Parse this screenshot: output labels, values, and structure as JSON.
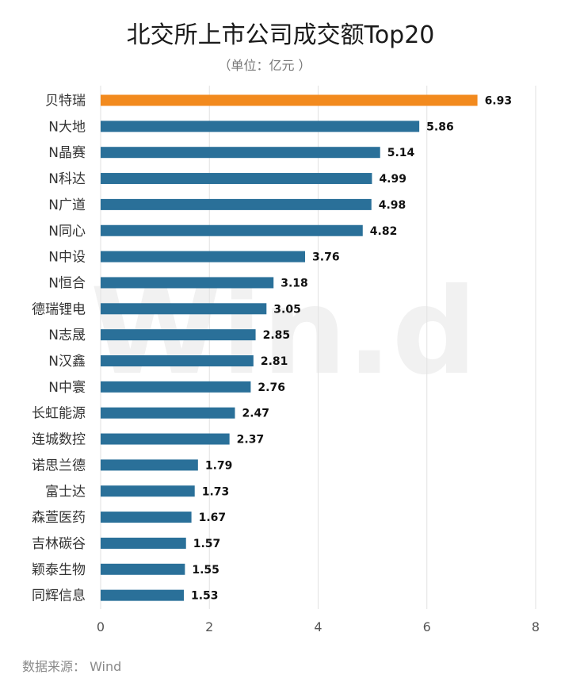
{
  "chart_data": {
    "type": "bar",
    "orientation": "horizontal",
    "title": "北交所上市公司成交额Top20",
    "subtitle": "（单位：亿元 ）",
    "categories": [
      "贝特瑞",
      "N大地",
      "N晶赛",
      "N科达",
      "N广道",
      "N同心",
      "N中设",
      "N恒合",
      "德瑞锂电",
      "N志晟",
      "N汉鑫",
      "N中寰",
      "长虹能源",
      "连城数控",
      "诺思兰德",
      "富士达",
      "森萱医药",
      "吉林碳谷",
      "颖泰生物",
      "同辉信息"
    ],
    "values": [
      6.93,
      5.86,
      5.14,
      4.99,
      4.98,
      4.82,
      3.76,
      3.18,
      3.05,
      2.85,
      2.81,
      2.76,
      2.47,
      2.37,
      1.79,
      1.73,
      1.67,
      1.57,
      1.55,
      1.53
    ],
    "value_labels": [
      "6.93",
      "5.86",
      "5.14",
      "4.99",
      "4.98",
      "4.82",
      "3.76",
      "3.18",
      "3.05",
      "2.85",
      "2.81",
      "2.76",
      "2.47",
      "2.37",
      "1.79",
      "1.73",
      "1.67",
      "1.57",
      "1.55",
      "1.53"
    ],
    "xlim": [
      0,
      8
    ],
    "xticks": [
      "0",
      "2",
      "4",
      "6",
      "8"
    ],
    "grid": true,
    "colors": {
      "highlight": "#F28A1E",
      "bar": "#2A7099"
    },
    "highlight_index": 0
  },
  "source": "数据来源： Wind",
  "watermark": "Win.d"
}
